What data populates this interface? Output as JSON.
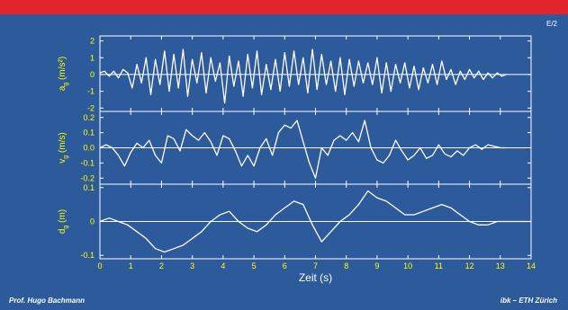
{
  "slide": {
    "id": "E/2",
    "author": "Prof. Hugo Bachmann",
    "institution": "ibk – ETH Zürich"
  },
  "colors": {
    "background": "#2c5a9b",
    "topbar": "#e0242b",
    "text": "#ffffff",
    "tick_label": "#ffff00"
  },
  "chart_data": [
    {
      "type": "line",
      "ylabel_main": "a",
      "ylabel_sub": "g",
      "ylabel_unit": " (m/s²)",
      "xlim": [
        0,
        14
      ],
      "ylim": [
        -2.2,
        2.3
      ],
      "yticks": [
        {
          "v": 2,
          "label": "2"
        },
        {
          "v": 1,
          "label": "1"
        },
        {
          "v": 0,
          "label": "0"
        },
        {
          "v": -1,
          "label": "-1"
        },
        {
          "v": -2,
          "label": "-2"
        }
      ],
      "x": [
        0.0,
        0.15,
        0.3,
        0.45,
        0.6,
        0.75,
        0.9,
        1.05,
        1.2,
        1.35,
        1.5,
        1.65,
        1.8,
        1.95,
        2.1,
        2.25,
        2.4,
        2.55,
        2.7,
        2.85,
        3.0,
        3.15,
        3.3,
        3.45,
        3.6,
        3.75,
        3.9,
        4.05,
        4.2,
        4.35,
        4.5,
        4.65,
        4.8,
        4.95,
        5.1,
        5.25,
        5.4,
        5.55,
        5.7,
        5.85,
        6.0,
        6.15,
        6.3,
        6.45,
        6.6,
        6.75,
        6.9,
        7.05,
        7.2,
        7.35,
        7.5,
        7.65,
        7.8,
        7.95,
        8.1,
        8.25,
        8.4,
        8.55,
        8.7,
        8.85,
        9.0,
        9.15,
        9.3,
        9.45,
        9.6,
        9.75,
        9.9,
        10.05,
        10.2,
        10.35,
        10.5,
        10.65,
        10.8,
        10.95,
        11.1,
        11.25,
        11.4,
        11.55,
        11.7,
        11.85,
        12.0,
        12.15,
        12.3,
        12.45,
        12.6,
        12.75,
        12.9,
        13.05,
        13.2
      ],
      "values": [
        0.1,
        0.2,
        -0.1,
        0.2,
        -0.2,
        0.3,
        0.1,
        -0.8,
        0.6,
        -0.5,
        1.0,
        -1.2,
        0.9,
        -0.6,
        1.4,
        -1.0,
        1.2,
        -0.8,
        1.5,
        -1.3,
        0.9,
        -0.5,
        1.3,
        -1.1,
        1.0,
        -0.4,
        0.7,
        -1.7,
        1.1,
        -0.7,
        0.8,
        -1.3,
        1.2,
        -0.8,
        1.4,
        -1.2,
        0.6,
        -0.9,
        0.9,
        -1.0,
        1.3,
        -0.7,
        1.4,
        -0.6,
        1.0,
        -1.1,
        1.5,
        -0.9,
        1.2,
        -0.6,
        0.8,
        -1.0,
        1.0,
        -1.2,
        0.9,
        -0.7,
        0.8,
        -0.5,
        0.7,
        -0.6,
        1.0,
        -1.1,
        0.7,
        -1.0,
        0.6,
        -0.5,
        0.7,
        -0.8,
        0.5,
        -0.9,
        0.4,
        -0.5,
        0.6,
        -0.6,
        0.8,
        -0.3,
        0.3,
        -0.6,
        0.2,
        -0.3,
        0.3,
        -0.2,
        0.2,
        -0.3,
        0.1,
        -0.2,
        0.1,
        -0.1,
        0.0
      ]
    },
    {
      "type": "line",
      "ylabel_main": "v",
      "ylabel_sub": "g",
      "ylabel_unit": " (m/s)",
      "xlim": [
        0,
        14
      ],
      "ylim": [
        -0.24,
        0.24
      ],
      "yticks": [
        {
          "v": 0.2,
          "label": "0.2"
        },
        {
          "v": 0.1,
          "label": "0.1"
        },
        {
          "v": 0.0,
          "label": "0.0"
        },
        {
          "v": -0.1,
          "label": "-0.1"
        },
        {
          "v": -0.2,
          "label": "-0.2"
        }
      ],
      "x": [
        0.0,
        0.2,
        0.4,
        0.6,
        0.8,
        1.0,
        1.2,
        1.4,
        1.6,
        1.8,
        2.0,
        2.2,
        2.4,
        2.6,
        2.8,
        3.0,
        3.2,
        3.4,
        3.6,
        3.8,
        4.0,
        4.2,
        4.4,
        4.6,
        4.8,
        5.0,
        5.2,
        5.4,
        5.6,
        5.8,
        6.0,
        6.2,
        6.4,
        6.6,
        6.8,
        7.0,
        7.2,
        7.4,
        7.6,
        7.8,
        8.0,
        8.2,
        8.4,
        8.6,
        8.8,
        9.0,
        9.2,
        9.4,
        9.6,
        9.8,
        10.0,
        10.2,
        10.4,
        10.6,
        10.8,
        11.0,
        11.2,
        11.4,
        11.6,
        11.8,
        12.0,
        12.2,
        12.4,
        12.6,
        12.8,
        13.0,
        13.2
      ],
      "values": [
        0.0,
        0.02,
        0.0,
        -0.05,
        -0.12,
        -0.03,
        0.03,
        0.0,
        0.05,
        -0.05,
        -0.1,
        0.08,
        0.06,
        -0.02,
        0.12,
        0.08,
        0.05,
        0.1,
        0.04,
        -0.05,
        0.08,
        0.06,
        -0.02,
        -0.12,
        -0.05,
        -0.12,
        0.0,
        0.06,
        -0.05,
        0.1,
        0.15,
        0.13,
        0.18,
        0.04,
        -0.1,
        -0.2,
        0.0,
        -0.05,
        0.05,
        0.08,
        0.05,
        0.1,
        0.04,
        0.18,
        0.0,
        -0.08,
        -0.1,
        -0.05,
        0.05,
        -0.02,
        -0.08,
        -0.05,
        0.0,
        -0.07,
        -0.05,
        0.02,
        -0.04,
        -0.06,
        -0.02,
        -0.05,
        0.0,
        0.02,
        -0.01,
        0.02,
        0.01,
        0.0,
        0.0
      ]
    },
    {
      "type": "line",
      "ylabel_main": "d",
      "ylabel_sub": "g",
      "ylabel_unit": " (m)",
      "xlabel": "Zeit (s)",
      "xlim": [
        0,
        14
      ],
      "ylim": [
        -0.11,
        0.11
      ],
      "xticks": [
        0,
        1,
        2,
        3,
        4,
        5,
        6,
        7,
        8,
        9,
        10,
        11,
        12,
        13,
        14
      ],
      "yticks": [
        {
          "v": 0.1,
          "label": "0.1"
        },
        {
          "v": 0,
          "label": "0"
        },
        {
          "v": -0.1,
          "label": "-0.1"
        }
      ],
      "x": [
        0.0,
        0.3,
        0.6,
        0.9,
        1.2,
        1.5,
        1.8,
        2.1,
        2.4,
        2.7,
        3.0,
        3.3,
        3.6,
        3.9,
        4.2,
        4.5,
        4.8,
        5.1,
        5.4,
        5.7,
        6.0,
        6.3,
        6.6,
        6.9,
        7.2,
        7.5,
        7.8,
        8.1,
        8.4,
        8.7,
        9.0,
        9.3,
        9.6,
        9.9,
        10.2,
        10.5,
        10.8,
        11.1,
        11.4,
        11.7,
        12.0,
        12.3,
        12.6,
        12.9,
        13.2,
        13.5,
        13.8,
        14.0
      ],
      "values": [
        0.0,
        0.01,
        0.0,
        -0.01,
        -0.03,
        -0.05,
        -0.08,
        -0.09,
        -0.08,
        -0.07,
        -0.05,
        -0.03,
        0.0,
        0.02,
        0.03,
        0.0,
        -0.02,
        -0.03,
        -0.01,
        0.02,
        0.04,
        0.06,
        0.05,
        -0.01,
        -0.06,
        -0.03,
        0.0,
        0.02,
        0.05,
        0.09,
        0.07,
        0.06,
        0.04,
        0.02,
        0.02,
        0.03,
        0.04,
        0.05,
        0.04,
        0.02,
        0.0,
        -0.01,
        -0.01,
        0.0,
        0.0,
        0.0,
        0.0,
        0.0
      ]
    }
  ]
}
